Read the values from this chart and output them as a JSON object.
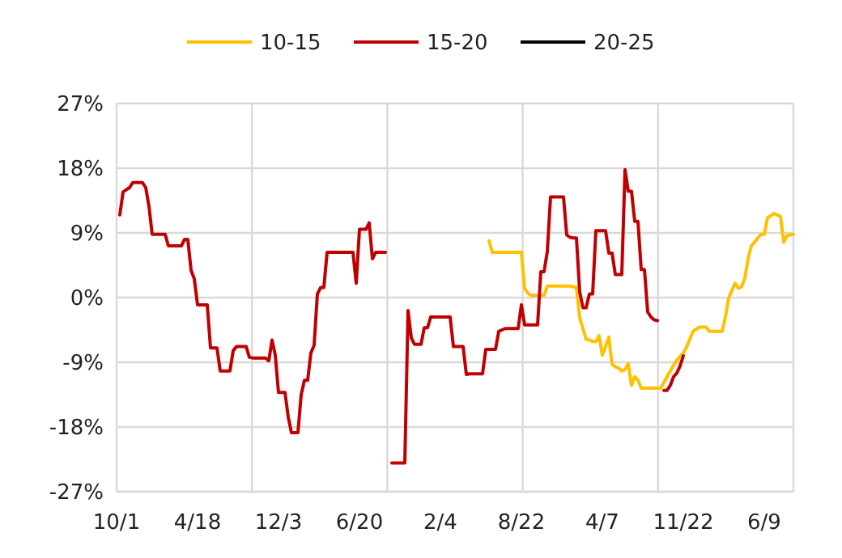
{
  "chart_data": {
    "type": "line",
    "categories": [
      "10/1",
      null,
      null,
      null,
      null,
      null,
      null,
      null,
      null,
      null,
      null,
      null,
      null,
      null,
      null,
      null,
      null,
      null,
      null,
      null,
      null,
      null,
      null,
      null,
      null,
      "4/18",
      null,
      null,
      null,
      null,
      null,
      null,
      null,
      null,
      null,
      null,
      null,
      null,
      null,
      null,
      null,
      null,
      null,
      null,
      null,
      null,
      null,
      null,
      null,
      null,
      "12/3",
      null,
      null,
      null,
      null,
      null,
      null,
      null,
      null,
      null,
      null,
      null,
      null,
      null,
      null,
      null,
      null,
      null,
      null,
      null,
      null,
      null,
      null,
      null,
      null,
      "6/20",
      null,
      null,
      null,
      null,
      null,
      null,
      null,
      null,
      null,
      null,
      null,
      null,
      null,
      null,
      null,
      null,
      null,
      null,
      null,
      null,
      null,
      null,
      null,
      null,
      "2/4",
      null,
      null,
      null,
      null,
      null,
      null,
      null,
      null,
      null,
      null,
      null,
      null,
      null,
      null,
      null,
      null,
      null,
      null,
      null,
      null,
      null,
      null,
      null,
      null,
      "8/22",
      null,
      null,
      null,
      null,
      null,
      null,
      null,
      null,
      null,
      null,
      null,
      null,
      null,
      null,
      null,
      null,
      null,
      null,
      null,
      null,
      null,
      null,
      null,
      null,
      "4/7",
      null,
      null,
      null,
      null,
      null,
      null,
      null,
      null,
      null,
      null,
      null,
      null,
      null,
      null,
      null,
      null,
      null,
      null,
      null,
      null,
      null,
      null,
      null,
      null,
      "11/22",
      null,
      null,
      null,
      null,
      null,
      null,
      null,
      null,
      null,
      null,
      null,
      null,
      null,
      null,
      null,
      null,
      null,
      null,
      null,
      null,
      null,
      null,
      null,
      null,
      "6/9",
      null,
      null,
      null,
      null,
      null,
      null,
      null,
      null,
      null
    ],
    "ylim": [
      -27,
      27
    ],
    "yticks": [
      {
        "value": -27,
        "label": "-27%"
      },
      {
        "value": -18,
        "label": "-18%"
      },
      {
        "value": -9,
        "label": "-9%"
      },
      {
        "value": 0,
        "label": "0%"
      },
      {
        "value": 9,
        "label": "9%"
      },
      {
        "value": 18,
        "label": "18%"
      },
      {
        "value": 27,
        "label": "27%"
      }
    ],
    "grid": true,
    "legend": "top",
    "marker": "none",
    "line_style": "solid",
    "series": [
      {
        "name": "10-15",
        "color": "#ffc000",
        "values": [
          null,
          null,
          null,
          null,
          null,
          null,
          null,
          null,
          null,
          null,
          null,
          null,
          null,
          null,
          null,
          null,
          null,
          null,
          null,
          null,
          null,
          null,
          null,
          null,
          null,
          null,
          null,
          null,
          null,
          null,
          null,
          null,
          null,
          null,
          null,
          null,
          null,
          null,
          null,
          null,
          null,
          null,
          null,
          null,
          null,
          null,
          null,
          null,
          null,
          null,
          null,
          null,
          null,
          null,
          null,
          null,
          null,
          null,
          null,
          null,
          null,
          null,
          null,
          null,
          null,
          null,
          null,
          null,
          null,
          null,
          null,
          null,
          null,
          null,
          null,
          null,
          null,
          null,
          null,
          null,
          null,
          null,
          null,
          null,
          null,
          null,
          null,
          null,
          null,
          null,
          null,
          null,
          null,
          null,
          null,
          null,
          null,
          null,
          null,
          null,
          null,
          null,
          null,
          null,
          null,
          null,
          null,
          null,
          null,
          null,
          null,
          null,
          null,
          null,
          null,
          7.9,
          6.3,
          6.3,
          6.3,
          6.3,
          6.3,
          6.3,
          6.3,
          6.3,
          6.3,
          6.3,
          1.3,
          0.6,
          0.3,
          0.3,
          0.3,
          0.3,
          0.3,
          1.6,
          1.6,
          1.6,
          1.6,
          1.6,
          1.6,
          1.6,
          1.6,
          1.5,
          1.4,
          -2.8,
          -4.3,
          -5.8,
          -5.9,
          -6.1,
          -6.1,
          -5.3,
          -8,
          -6.8,
          -5.5,
          -9.3,
          -9.6,
          -9.8,
          -10.2,
          -10,
          -9.2,
          -12.2,
          -11,
          -11.5,
          -12.6,
          -12.6,
          -12.6,
          -12.6,
          -12.6,
          -12.6,
          -12.6,
          -11.8,
          -11,
          -10.2,
          -9.4,
          -8.7,
          -8.2,
          -7.7,
          -6.9,
          -5.8,
          -4.7,
          -4.4,
          -4.1,
          -4.1,
          -4.1,
          -4.7,
          -4.7,
          -4.7,
          -4.7,
          -4.7,
          -2.7,
          -0.1,
          1,
          2,
          1.3,
          1.5,
          2.7,
          5.4,
          7.2,
          7.7,
          8.3,
          8.8,
          8.8,
          11.1,
          11.4,
          11.7,
          11.5,
          11.3,
          7.7,
          8.6,
          8.7,
          8.8
        ]
      },
      {
        "name": "15-20",
        "color": "#c00000",
        "values": [
          null,
          11.5,
          14.7,
          15,
          15.3,
          16,
          16,
          16,
          16,
          15.3,
          12.7,
          8.8,
          8.8,
          8.8,
          8.8,
          8.8,
          7.2,
          7.2,
          7.2,
          7.2,
          7.2,
          8.1,
          8.1,
          3.8,
          2.6,
          -1,
          -1,
          -1,
          -1,
          -7,
          -7,
          -7,
          -10.2,
          -10.2,
          -10.2,
          -10.2,
          -7.4,
          -6.8,
          -6.8,
          -6.8,
          -6.8,
          -8.3,
          -8.4,
          -8.4,
          -8.4,
          -8.4,
          -8.4,
          -8.8,
          -5.9,
          -8,
          -13.2,
          -13.2,
          -13.2,
          -16.6,
          -18.8,
          -18.8,
          -18.8,
          -13.5,
          -11.5,
          -11.5,
          -7.7,
          -6.6,
          0.5,
          1.4,
          1.4,
          6.3,
          6.3,
          6.3,
          6.3,
          6.3,
          6.3,
          6.3,
          6.3,
          6.3,
          2,
          9.5,
          9.5,
          9.5,
          10.4,
          5.4,
          6.3,
          6.3,
          6.3,
          6.3,
          null,
          -23,
          -23,
          -23,
          -23,
          -23,
          -1.8,
          -5.6,
          -6.5,
          -6.5,
          -6.5,
          -4.2,
          -4.2,
          -2.7,
          -2.7,
          -2.7,
          -2.7,
          -2.7,
          -2.7,
          -2.7,
          -6.8,
          -6.8,
          -6.8,
          -6.8,
          -10.7,
          -10.6,
          -10.6,
          -10.6,
          -10.6,
          -10.6,
          -7.2,
          -7.2,
          -7.2,
          -7.2,
          -4.7,
          -4.5,
          -4.3,
          -4.3,
          -4.3,
          -4.3,
          -4.3,
          -1,
          -3.8,
          -3.8,
          -3.8,
          -3.8,
          -3.8,
          3.6,
          3.6,
          6.4,
          14,
          14,
          14,
          14,
          14,
          8.7,
          8.4,
          8.3,
          8.3,
          0.8,
          -1.4,
          -1.4,
          0.5,
          0.5,
          9.3,
          9.3,
          9.3,
          9.3,
          6.2,
          6.2,
          3.2,
          3.2,
          3.2,
          17.8,
          14.8,
          14.8,
          10.6,
          10.6,
          3.9,
          3.9,
          -2,
          -2.7,
          -3.1,
          -3.2,
          null,
          -12.9,
          -12.9,
          -12.2,
          -11,
          -10.5,
          -9.5,
          -8.1,
          null,
          null,
          null,
          null,
          null,
          null,
          null,
          null,
          null,
          null,
          null,
          null,
          null,
          null,
          null,
          null,
          null,
          null,
          null,
          null,
          null,
          null,
          null,
          null,
          null,
          null,
          null,
          null,
          null,
          null,
          null,
          null,
          null,
          null
        ]
      },
      {
        "name": "20-25",
        "color": "#000000",
        "values": [
          null,
          null,
          null,
          null,
          null,
          null,
          null,
          null,
          null,
          null,
          null,
          null,
          null,
          null,
          null,
          null,
          null,
          null,
          null,
          null,
          null,
          null,
          null,
          null,
          null,
          null,
          null,
          null,
          null,
          null,
          null,
          null,
          null,
          null,
          null,
          null,
          null,
          null,
          null,
          null,
          null,
          null,
          null,
          null,
          null,
          null,
          null,
          null,
          null,
          null,
          null,
          null,
          null,
          null,
          null,
          null,
          null,
          null,
          null,
          null,
          null,
          null,
          null,
          null,
          null,
          null,
          null,
          null,
          null,
          null,
          null,
          null,
          null,
          null,
          null,
          null,
          null,
          null,
          null,
          null,
          null,
          null,
          null,
          null,
          null,
          null,
          null,
          null,
          null,
          null,
          null,
          null,
          null,
          null,
          null,
          null,
          null,
          null,
          null,
          null,
          null,
          null,
          null,
          null,
          null,
          null,
          null,
          null,
          null,
          null,
          null,
          null,
          null,
          null,
          null,
          null,
          null,
          null,
          null,
          null,
          null,
          null,
          null,
          null,
          null,
          null,
          null,
          null,
          null,
          null,
          null,
          null,
          null,
          null,
          null,
          null,
          null,
          null,
          null,
          null,
          null,
          null,
          null,
          null,
          null,
          null,
          null,
          null,
          null,
          null,
          null,
          null,
          null,
          null,
          null,
          null,
          null,
          null,
          null,
          null,
          null,
          null,
          null,
          null,
          null,
          null,
          null,
          null,
          null,
          null,
          null,
          null,
          null,
          null,
          null,
          null,
          null,
          null,
          null,
          null,
          null,
          null,
          null,
          null,
          null,
          null,
          null,
          null,
          null,
          null,
          null,
          null,
          null,
          null,
          null,
          null,
          null,
          null,
          null,
          null,
          null,
          null,
          null,
          null,
          null,
          null,
          null,
          null,
          null,
          null
        ]
      }
    ]
  }
}
